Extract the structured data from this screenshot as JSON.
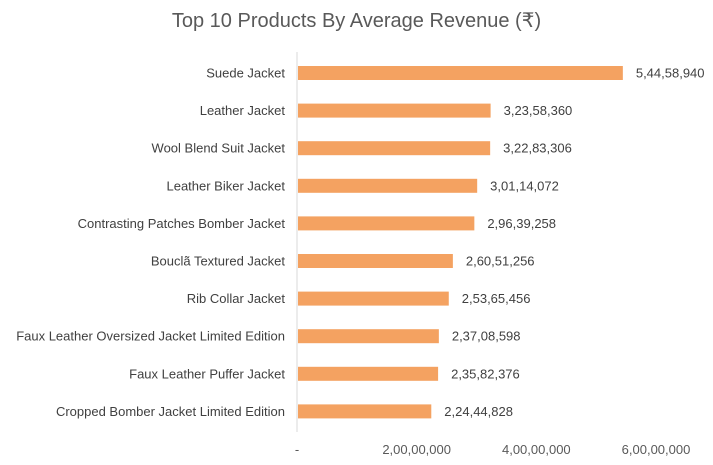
{
  "chart_data": {
    "type": "bar",
    "orientation": "horizontal",
    "title": "Top 10 Products By Average Revenue (₹)",
    "xlabel": "",
    "ylabel": "",
    "categories": [
      "Suede Jacket",
      "Leather Jacket",
      "Wool Blend Suit Jacket",
      "Leather Biker Jacket",
      "Contrasting Patches Bomber Jacket",
      "Bouclã Textured Jacket",
      "Rib Collar Jacket",
      "Faux Leather Oversized Jacket Limited Edition",
      "Faux Leather Puffer Jacket",
      "Cropped Bomber Jacket Limited Edition"
    ],
    "values": [
      54458940,
      32358360,
      32283306,
      30114072,
      29639258,
      26051256,
      25365456,
      23708598,
      23582376,
      22444828
    ],
    "data_labels": [
      "5,44,58,940",
      "3,23,58,360",
      "3,22,83,306",
      "3,01,14,072",
      "2,96,39,258",
      "2,60,51,256",
      "2,53,65,456",
      "2,37,08,598",
      "2,35,82,376",
      "2,24,44,828"
    ],
    "xlim": [
      0,
      60000000
    ],
    "x_ticks": [
      0,
      20000000,
      40000000,
      60000000
    ],
    "x_tick_labels": [
      "-",
      "2,00,00,000",
      "4,00,00,000",
      "6,00,00,000"
    ],
    "grid": false,
    "legend": "none",
    "bar_color": "#F4A261",
    "axis_color": "#D9D9D9"
  }
}
